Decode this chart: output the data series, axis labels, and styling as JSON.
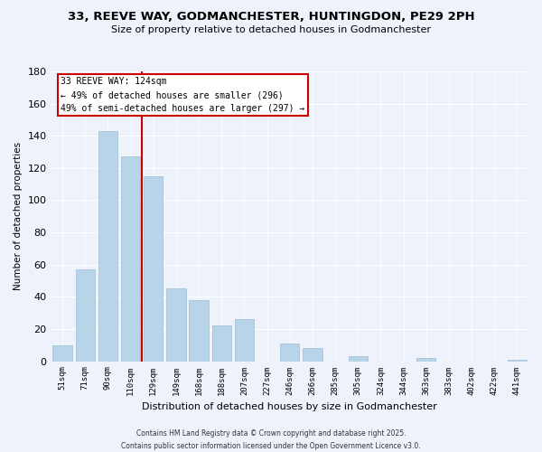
{
  "title": "33, REEVE WAY, GODMANCHESTER, HUNTINGDON, PE29 2PH",
  "subtitle": "Size of property relative to detached houses in Godmanchester",
  "xlabel": "Distribution of detached houses by size in Godmanchester",
  "ylabel": "Number of detached properties",
  "categories": [
    "51sqm",
    "71sqm",
    "90sqm",
    "110sqm",
    "129sqm",
    "149sqm",
    "168sqm",
    "188sqm",
    "207sqm",
    "227sqm",
    "246sqm",
    "266sqm",
    "285sqm",
    "305sqm",
    "324sqm",
    "344sqm",
    "363sqm",
    "383sqm",
    "402sqm",
    "422sqm",
    "441sqm"
  ],
  "values": [
    10,
    57,
    143,
    127,
    115,
    45,
    38,
    22,
    26,
    0,
    11,
    8,
    0,
    3,
    0,
    0,
    2,
    0,
    0,
    0,
    1
  ],
  "bar_color": "#b8d4e8",
  "bar_edge_color": "#a0bcd4",
  "marker_line_color": "#cc0000",
  "annotation_line1": "33 REEVE WAY: 124sqm",
  "annotation_line2": "← 49% of detached houses are smaller (296)",
  "annotation_line3": "49% of semi-detached houses are larger (297) →",
  "annotation_box_color": "#ffffff",
  "annotation_box_edge_color": "#cc0000",
  "ylim": [
    0,
    180
  ],
  "yticks": [
    0,
    20,
    40,
    60,
    80,
    100,
    120,
    140,
    160,
    180
  ],
  "background_color": "#eef2fa",
  "grid_color": "#ffffff",
  "footer_line1": "Contains HM Land Registry data © Crown copyright and database right 2025.",
  "footer_line2": "Contains public sector information licensed under the Open Government Licence v3.0."
}
